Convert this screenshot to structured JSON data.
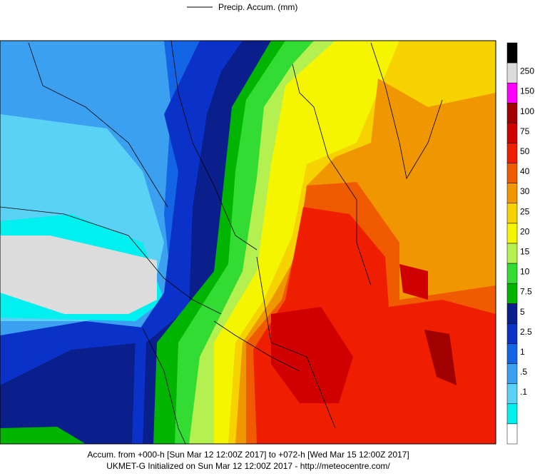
{
  "legend": {
    "label": "Precip. Accum. (mm)"
  },
  "colorbar": {
    "labels": [
      "250",
      "150",
      "100",
      "75",
      "50",
      "40",
      "30",
      "25",
      "20",
      "15",
      "10",
      "7.5",
      "5",
      "2.5",
      "1",
      ".5",
      ".1"
    ],
    "colors": [
      "#000000",
      "#dcdcdc",
      "#ff00ff",
      "#a00000",
      "#d00000",
      "#f01e00",
      "#f05a00",
      "#f09600",
      "#f5d200",
      "#f5f500",
      "#b4f050",
      "#32dc32",
      "#00b400",
      "#0a1e8c",
      "#0a32c8",
      "#1464e6",
      "#3ca0f0",
      "#5ad2f5",
      "#00f0f0",
      "#ffffff"
    ]
  },
  "caption": {
    "line1": "Accum. from +000-h [Sun Mar 12 12:00Z 2017] to +072-h [Wed Mar 15 12:00Z 2017]",
    "line2": "UKMET-G Initialized on Sun Mar 12 12:00Z 2017 - http://meteocentre.com/"
  }
}
